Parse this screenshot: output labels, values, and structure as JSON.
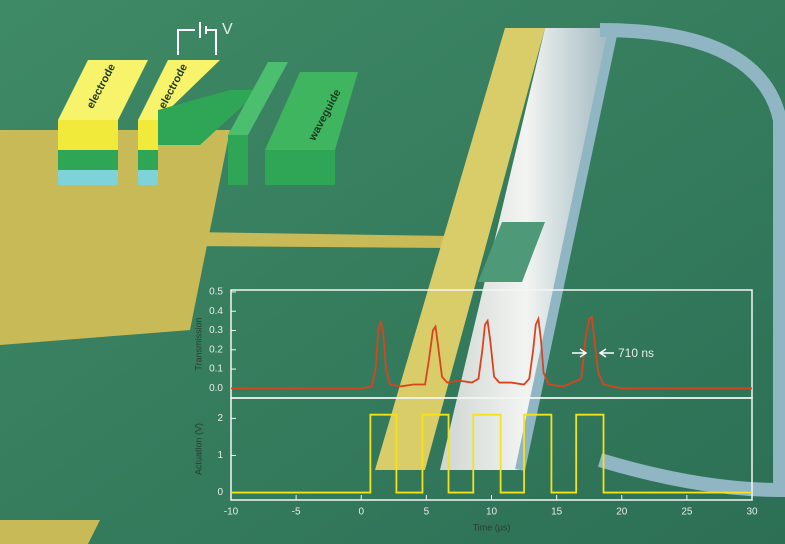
{
  "illustration": {
    "voltage_label": "V",
    "electrode_labels": [
      "electrode",
      "electrode"
    ],
    "waveguide_label": "waveguide"
  },
  "chart_data": [
    {
      "type": "line",
      "ylabel": "Transmission",
      "color": "#d9431e",
      "x": [
        -10,
        0,
        0.8,
        1.1,
        1.3,
        1.5,
        1.7,
        1.9,
        2.2,
        3,
        4,
        4.9,
        5.2,
        5.5,
        5.7,
        5.9,
        6.2,
        6.6,
        7.5,
        8.5,
        9,
        9.3,
        9.5,
        9.7,
        9.9,
        10.2,
        10.6,
        11.5,
        12.5,
        12.9,
        13.2,
        13.4,
        13.6,
        13.8,
        14,
        14.4,
        15.5,
        16.9,
        17.2,
        17.5,
        17.7,
        17.9,
        18.2,
        18.6,
        20,
        30
      ],
      "values": [
        0.0,
        0.0,
        0.01,
        0.1,
        0.3,
        0.35,
        0.28,
        0.1,
        0.02,
        0.01,
        0.02,
        0.02,
        0.15,
        0.3,
        0.32,
        0.22,
        0.06,
        0.03,
        0.04,
        0.03,
        0.05,
        0.2,
        0.33,
        0.35,
        0.25,
        0.06,
        0.03,
        0.03,
        0.02,
        0.05,
        0.2,
        0.33,
        0.36,
        0.25,
        0.08,
        0.02,
        0.01,
        0.05,
        0.25,
        0.36,
        0.37,
        0.25,
        0.08,
        0.02,
        0.0,
        0.0
      ],
      "xlim": [
        -10,
        30
      ],
      "ylim": [
        -0.05,
        0.51
      ],
      "yticks": [
        {
          "value": 0,
          "label": "0.0"
        },
        0.1,
        0.2,
        0.3,
        0.4,
        0.5
      ],
      "annotation": "710 ns"
    },
    {
      "type": "line",
      "ylabel": "Actuation (V)",
      "xlabel": "Time (μs)",
      "color": "#f3e21c",
      "x": [
        -10,
        0.7,
        0.7,
        2.7,
        2.7,
        4.7,
        4.7,
        6.7,
        6.7,
        8.6,
        8.6,
        10.7,
        10.7,
        12.5,
        12.5,
        14.6,
        14.6,
        16.5,
        16.5,
        18.6,
        18.6,
        30
      ],
      "values": [
        0,
        0,
        2.1,
        2.1,
        0,
        0,
        2.1,
        2.1,
        0,
        0,
        2.1,
        2.1,
        0,
        0,
        2.1,
        2.1,
        0,
        0,
        2.1,
        2.1,
        0,
        0
      ],
      "xlim": [
        -10,
        30
      ],
      "ylim": [
        -0.2,
        2.55
      ],
      "xticks": [
        -10,
        -5,
        0,
        5,
        10,
        15,
        20,
        25,
        30
      ],
      "yticks": [
        0,
        1,
        2
      ]
    }
  ]
}
